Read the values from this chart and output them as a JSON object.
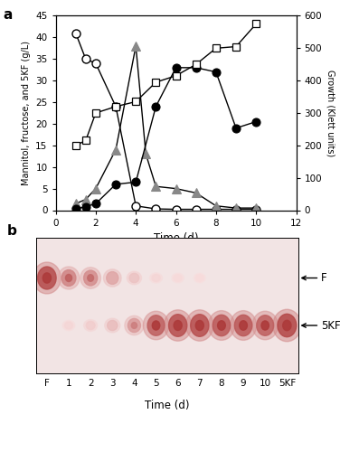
{
  "panel_a": {
    "xlabel": "Time (d)",
    "ylabel_left": "Mannitol, fructose, and 5KF (g/L)",
    "ylabel_right": "Growth (Klett units)",
    "xlim": [
      0,
      12
    ],
    "ylim_left": [
      0,
      45
    ],
    "ylim_right": [
      0,
      600
    ],
    "xticks": [
      0,
      2,
      4,
      6,
      8,
      10,
      12
    ],
    "yticks_left": [
      0,
      5,
      10,
      15,
      20,
      25,
      30,
      35,
      40,
      45
    ],
    "yticks_right": [
      0,
      100,
      200,
      300,
      400,
      500,
      600
    ],
    "growth_x": [
      1,
      1.5,
      2,
      3,
      4,
      5,
      6,
      7,
      8,
      9,
      10
    ],
    "growth_y": [
      200,
      215,
      300,
      320,
      335,
      395,
      415,
      450,
      500,
      505,
      575
    ],
    "mannitol_x": [
      1,
      1.5,
      2,
      3,
      4,
      5,
      6,
      7,
      8,
      9,
      10
    ],
    "mannitol_y": [
      41,
      35,
      34,
      24,
      1,
      0.3,
      0.2,
      0.2,
      0.2,
      0.2,
      0.2
    ],
    "fructose_x": [
      1,
      1.5,
      2,
      3,
      4,
      4.5,
      5,
      6,
      7,
      8,
      9,
      10
    ],
    "fructose_y": [
      1.5,
      2.5,
      5,
      14,
      38,
      13,
      5.5,
      5,
      4,
      1,
      0.5,
      0.5
    ],
    "fiveKF_x": [
      1,
      1.5,
      2,
      3,
      4,
      5,
      6,
      7,
      8,
      9,
      10
    ],
    "fiveKF_y": [
      0.3,
      0.8,
      1.5,
      6,
      6.5,
      24,
      33,
      33,
      32,
      19,
      20.5
    ]
  },
  "panel_b": {
    "xlabel": "Time (d)",
    "lane_labels": [
      "F",
      "1",
      "2",
      "3",
      "4",
      "5",
      "6",
      "7",
      "8",
      "9",
      "10",
      "5KF"
    ],
    "bg_color": "#f2e4e4",
    "spot_color_mid": "#c06070",
    "spot_color_dark": "#a02040",
    "f_y": 0.7,
    "kf_y": 0.35,
    "f_intensities": [
      0.9,
      0.55,
      0.5,
      0.35,
      0.18,
      0.06,
      0.04,
      0.03,
      0.02,
      0.02,
      0.02,
      0.02
    ],
    "kf_intensities": [
      0.02,
      0.06,
      0.12,
      0.22,
      0.42,
      0.78,
      0.88,
      0.88,
      0.82,
      0.82,
      0.78,
      0.92
    ],
    "arrow_F_label": "F",
    "arrow_5KF_label": "5KF"
  }
}
